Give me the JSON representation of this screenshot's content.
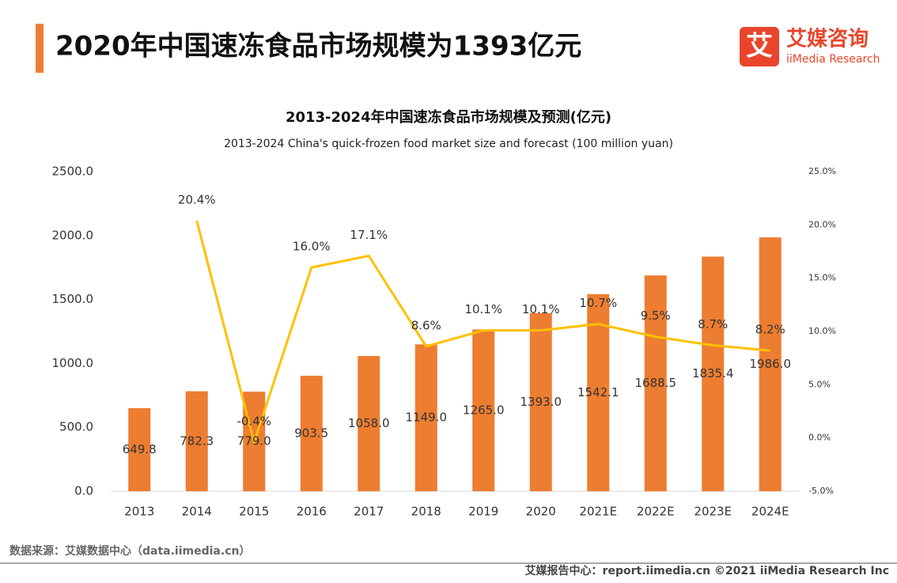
{
  "header": {
    "title": "2020年中国速冻食品市场规模为1393亿元",
    "logo_mark": "艾",
    "logo_name": "艾媒咨询",
    "logo_sub": "iiMedia Research"
  },
  "chart_data": {
    "type": "bar",
    "title": "2013-2024年中国速冻食品市场规模及预测(亿元)",
    "subtitle": "2013-2024 China's quick-frozen food market size and forecast (100 million yuan)",
    "categories": [
      "2013",
      "2014",
      "2015",
      "2016",
      "2017",
      "2018",
      "2019",
      "2020",
      "2021E",
      "2022E",
      "2023E",
      "2024E"
    ],
    "series": [
      {
        "type": "bar",
        "color": "#ed7d31",
        "values": [
          649.8,
          782.3,
          779.0,
          903.5,
          1058.0,
          1149.0,
          1265.0,
          1393.0,
          1542.1,
          1688.5,
          1835.4,
          1986.0
        ],
        "value_labels": [
          "649.8",
          "782.3",
          "779.0",
          "903.5",
          "1058.0",
          "1149.0",
          "1265.0",
          "1393.0",
          "1542.1",
          "1688.5",
          "1835.4",
          "1986.0"
        ]
      },
      {
        "type": "line",
        "axis": "y2",
        "color": "#ffc000",
        "values": [
          null,
          20.4,
          -0.4,
          16.0,
          17.1,
          8.6,
          10.1,
          10.1,
          10.7,
          9.5,
          8.7,
          8.2
        ],
        "value_labels": [
          null,
          "20.4%",
          "-0.4%",
          "16.0%",
          "17.1%",
          "8.6%",
          "10.1%",
          "10.1%",
          "10.7%",
          "9.5%",
          "8.7%",
          "8.2%"
        ]
      }
    ],
    "ylim": [
      0,
      2500
    ],
    "yticks": [
      {
        "value": 0,
        "label": "0.0"
      },
      {
        "value": 500,
        "label": "500.0"
      },
      {
        "value": 1000,
        "label": "1000.0"
      },
      {
        "value": 1500,
        "label": "1500.0"
      },
      {
        "value": 2000,
        "label": "2000.0"
      },
      {
        "value": 2500,
        "label": "2500.0"
      }
    ],
    "y2lim": [
      -5,
      25
    ],
    "y2ticks": [
      {
        "value": -5,
        "label": "-5.0%"
      },
      {
        "value": 0,
        "label": "0.0%"
      },
      {
        "value": 5,
        "label": "5.0%"
      },
      {
        "value": 10,
        "label": "10.0%"
      },
      {
        "value": 15,
        "label": "15.0%"
      },
      {
        "value": 20,
        "label": "20.0%"
      },
      {
        "value": 25,
        "label": "25.0%"
      }
    ],
    "grid": false
  },
  "footer": {
    "source": "数据来源：艾媒数据中心（data.iimedia.cn）",
    "right": "艾媒报告中心：report.iimedia.cn  ©2021  iiMedia Research  Inc"
  }
}
